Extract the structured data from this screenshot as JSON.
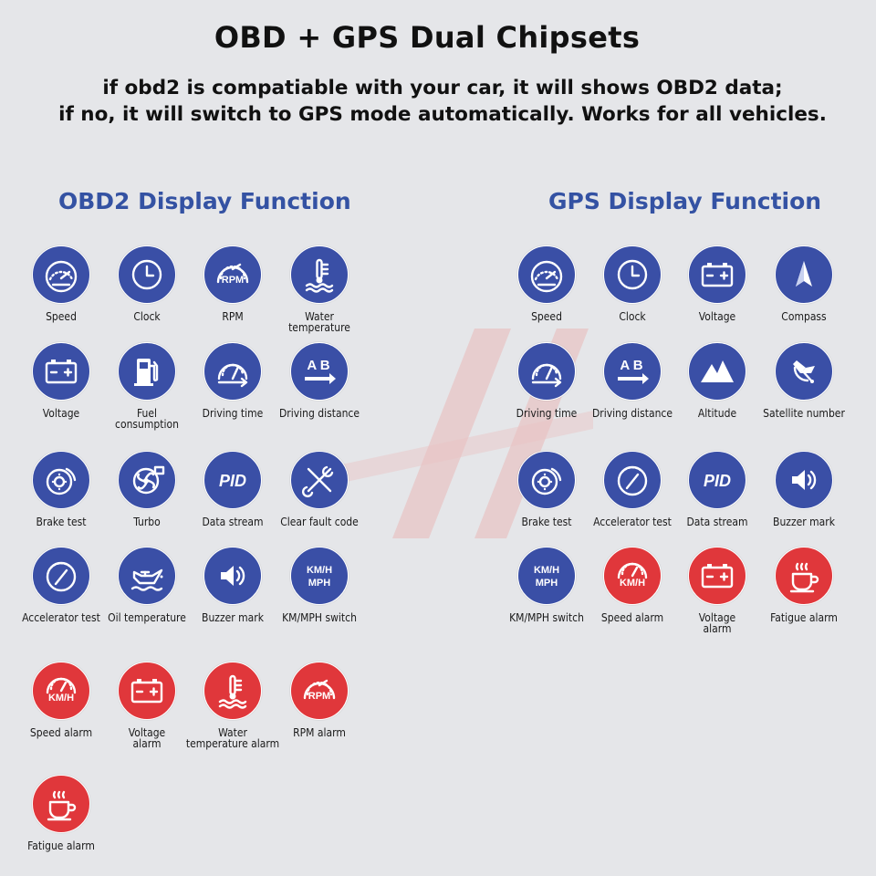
{
  "header": {
    "title": "OBD + GPS Dual Chipsets",
    "subtitle_line1": "if obd2 is compatiable with your car, it will shows OBD2 data;",
    "subtitle_line2": "if no, it will switch to GPS mode automatically. Works for all vehicles."
  },
  "obd2": {
    "title": "OBD2 Display Function",
    "items": [
      {
        "label": "Speed",
        "icon": "speedometer-icon",
        "color": "blue"
      },
      {
        "label": "Clock",
        "icon": "clock-icon",
        "color": "blue"
      },
      {
        "label": "RPM",
        "icon": "rpm-gauge-icon",
        "color": "blue"
      },
      {
        "label": "Water\ntemperature",
        "icon": "water-temperature-icon",
        "color": "blue"
      },
      {
        "label": "Voltage",
        "icon": "battery-icon",
        "color": "blue"
      },
      {
        "label": "Fuel\nconsumption",
        "icon": "fuel-pump-icon",
        "color": "blue"
      },
      {
        "label": "Driving time",
        "icon": "driving-time-icon",
        "color": "blue"
      },
      {
        "label": "Driving distance",
        "icon": "distance-ab-icon",
        "color": "blue"
      },
      {
        "label": "Brake test",
        "icon": "brake-disc-icon",
        "color": "blue"
      },
      {
        "label": "Turbo",
        "icon": "turbo-icon",
        "color": "blue"
      },
      {
        "label": "Data stream",
        "icon": "pid-icon",
        "color": "blue"
      },
      {
        "label": "Clear fault code",
        "icon": "tools-icon",
        "color": "blue"
      },
      {
        "label": "Accelerator test",
        "icon": "accelerator-gauge-icon",
        "color": "blue"
      },
      {
        "label": "Oil temperature",
        "icon": "oil-can-icon",
        "color": "blue"
      },
      {
        "label": "Buzzer mark",
        "icon": "speaker-icon",
        "color": "blue"
      },
      {
        "label": "KM/MPH switch",
        "icon": "unit-switch-icon",
        "color": "blue"
      },
      {
        "label": "Speed alarm",
        "icon": "speed-alarm-icon",
        "color": "red"
      },
      {
        "label": "Voltage\nalarm",
        "icon": "battery-icon",
        "color": "red"
      },
      {
        "label": "Water\ntemperature alarm",
        "icon": "water-temperature-icon",
        "color": "red"
      },
      {
        "label": "RPM alarm",
        "icon": "rpm-gauge-icon",
        "color": "red"
      },
      {
        "label": "Fatigue alarm",
        "icon": "coffee-cup-icon",
        "color": "red"
      }
    ]
  },
  "gps": {
    "title": "GPS Display Function",
    "items": [
      {
        "label": "Speed",
        "icon": "speedometer-icon",
        "color": "blue"
      },
      {
        "label": "Clock",
        "icon": "clock-icon",
        "color": "blue"
      },
      {
        "label": "Voltage",
        "icon": "battery-icon",
        "color": "blue"
      },
      {
        "label": "Compass",
        "icon": "compass-icon",
        "color": "blue"
      },
      {
        "label": "Driving time",
        "icon": "driving-time-icon",
        "color": "blue"
      },
      {
        "label": "Driving distance",
        "icon": "distance-ab-icon",
        "color": "blue"
      },
      {
        "label": "Altitude",
        "icon": "mountain-icon",
        "color": "blue"
      },
      {
        "label": "Satellite number",
        "icon": "satellite-icon",
        "color": "blue"
      },
      {
        "label": "Brake test",
        "icon": "brake-disc-icon",
        "color": "blue"
      },
      {
        "label": "Accelerator test",
        "icon": "accelerator-gauge-icon",
        "color": "blue"
      },
      {
        "label": "Data stream",
        "icon": "pid-icon",
        "color": "blue"
      },
      {
        "label": "Buzzer mark",
        "icon": "speaker-icon",
        "color": "blue"
      },
      {
        "label": "KM/MPH switch",
        "icon": "unit-switch-icon",
        "color": "blue"
      },
      {
        "label": "Speed alarm",
        "icon": "speed-alarm-icon",
        "color": "red"
      },
      {
        "label": "Voltage\nalarm",
        "icon": "battery-icon",
        "color": "red"
      },
      {
        "label": "Fatigue alarm",
        "icon": "coffee-cup-icon",
        "color": "red"
      }
    ]
  },
  "icon_text": {
    "rpm": "RPM",
    "pid": "PID",
    "km_h": "KM/H",
    "km_h_switch": "KM/H",
    "mph": "MPH",
    "ab": "A B"
  },
  "colors": {
    "blue": "#3a4fa6",
    "red": "#e0373b",
    "section_title": "#3452a3",
    "background": "#e5e6e9"
  }
}
